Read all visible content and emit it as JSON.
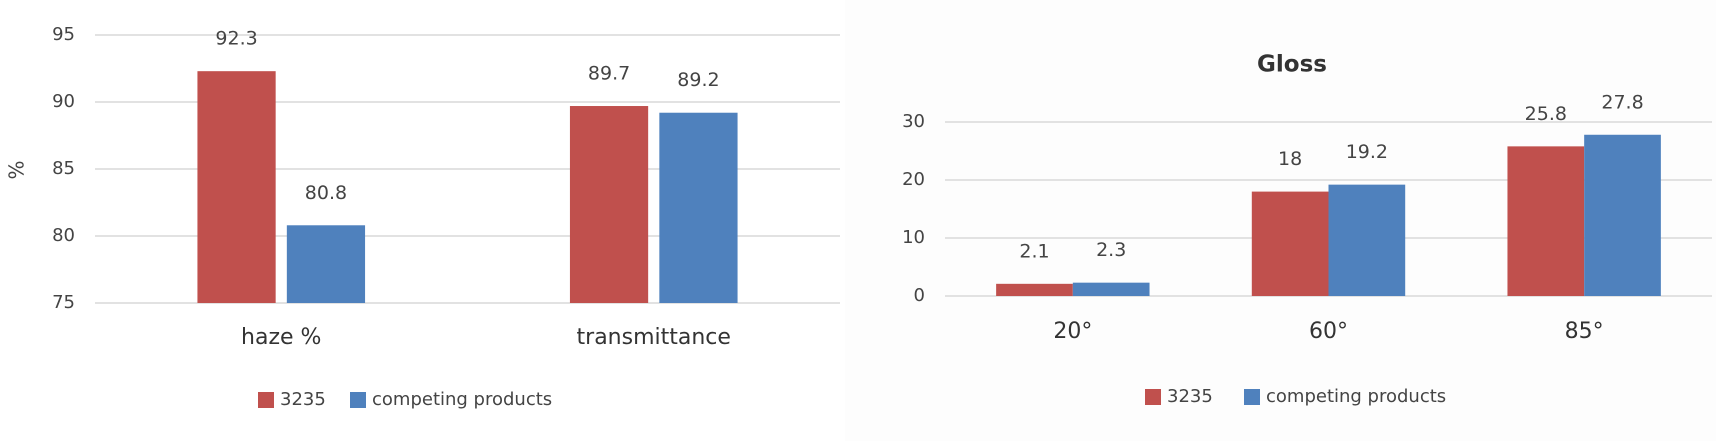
{
  "chart_data": [
    {
      "type": "bar",
      "y_label": "%",
      "categories": [
        "haze %",
        "transmittance"
      ],
      "series": [
        {
          "name": "3235",
          "color": "#c0504d",
          "values": [
            92.3,
            89.7
          ]
        },
        {
          "name": "competing products",
          "color": "#4f81bd",
          "values": [
            80.8,
            89.2
          ]
        }
      ],
      "ylim": [
        75,
        95
      ],
      "yticks": [
        75,
        80,
        85,
        90,
        95
      ],
      "grid": true
    },
    {
      "type": "bar",
      "title": "Gloss",
      "categories": [
        "20°",
        "60°",
        "85°"
      ],
      "series": [
        {
          "name": "3235",
          "color": "#c0504d",
          "values": [
            2.1,
            18,
            25.8
          ]
        },
        {
          "name": "competing products",
          "color": "#4f81bd",
          "values": [
            2.3,
            19.2,
            27.8
          ]
        }
      ],
      "ylim": [
        0,
        30
      ],
      "yticks": [
        0,
        10,
        20,
        30
      ],
      "grid": true
    }
  ]
}
